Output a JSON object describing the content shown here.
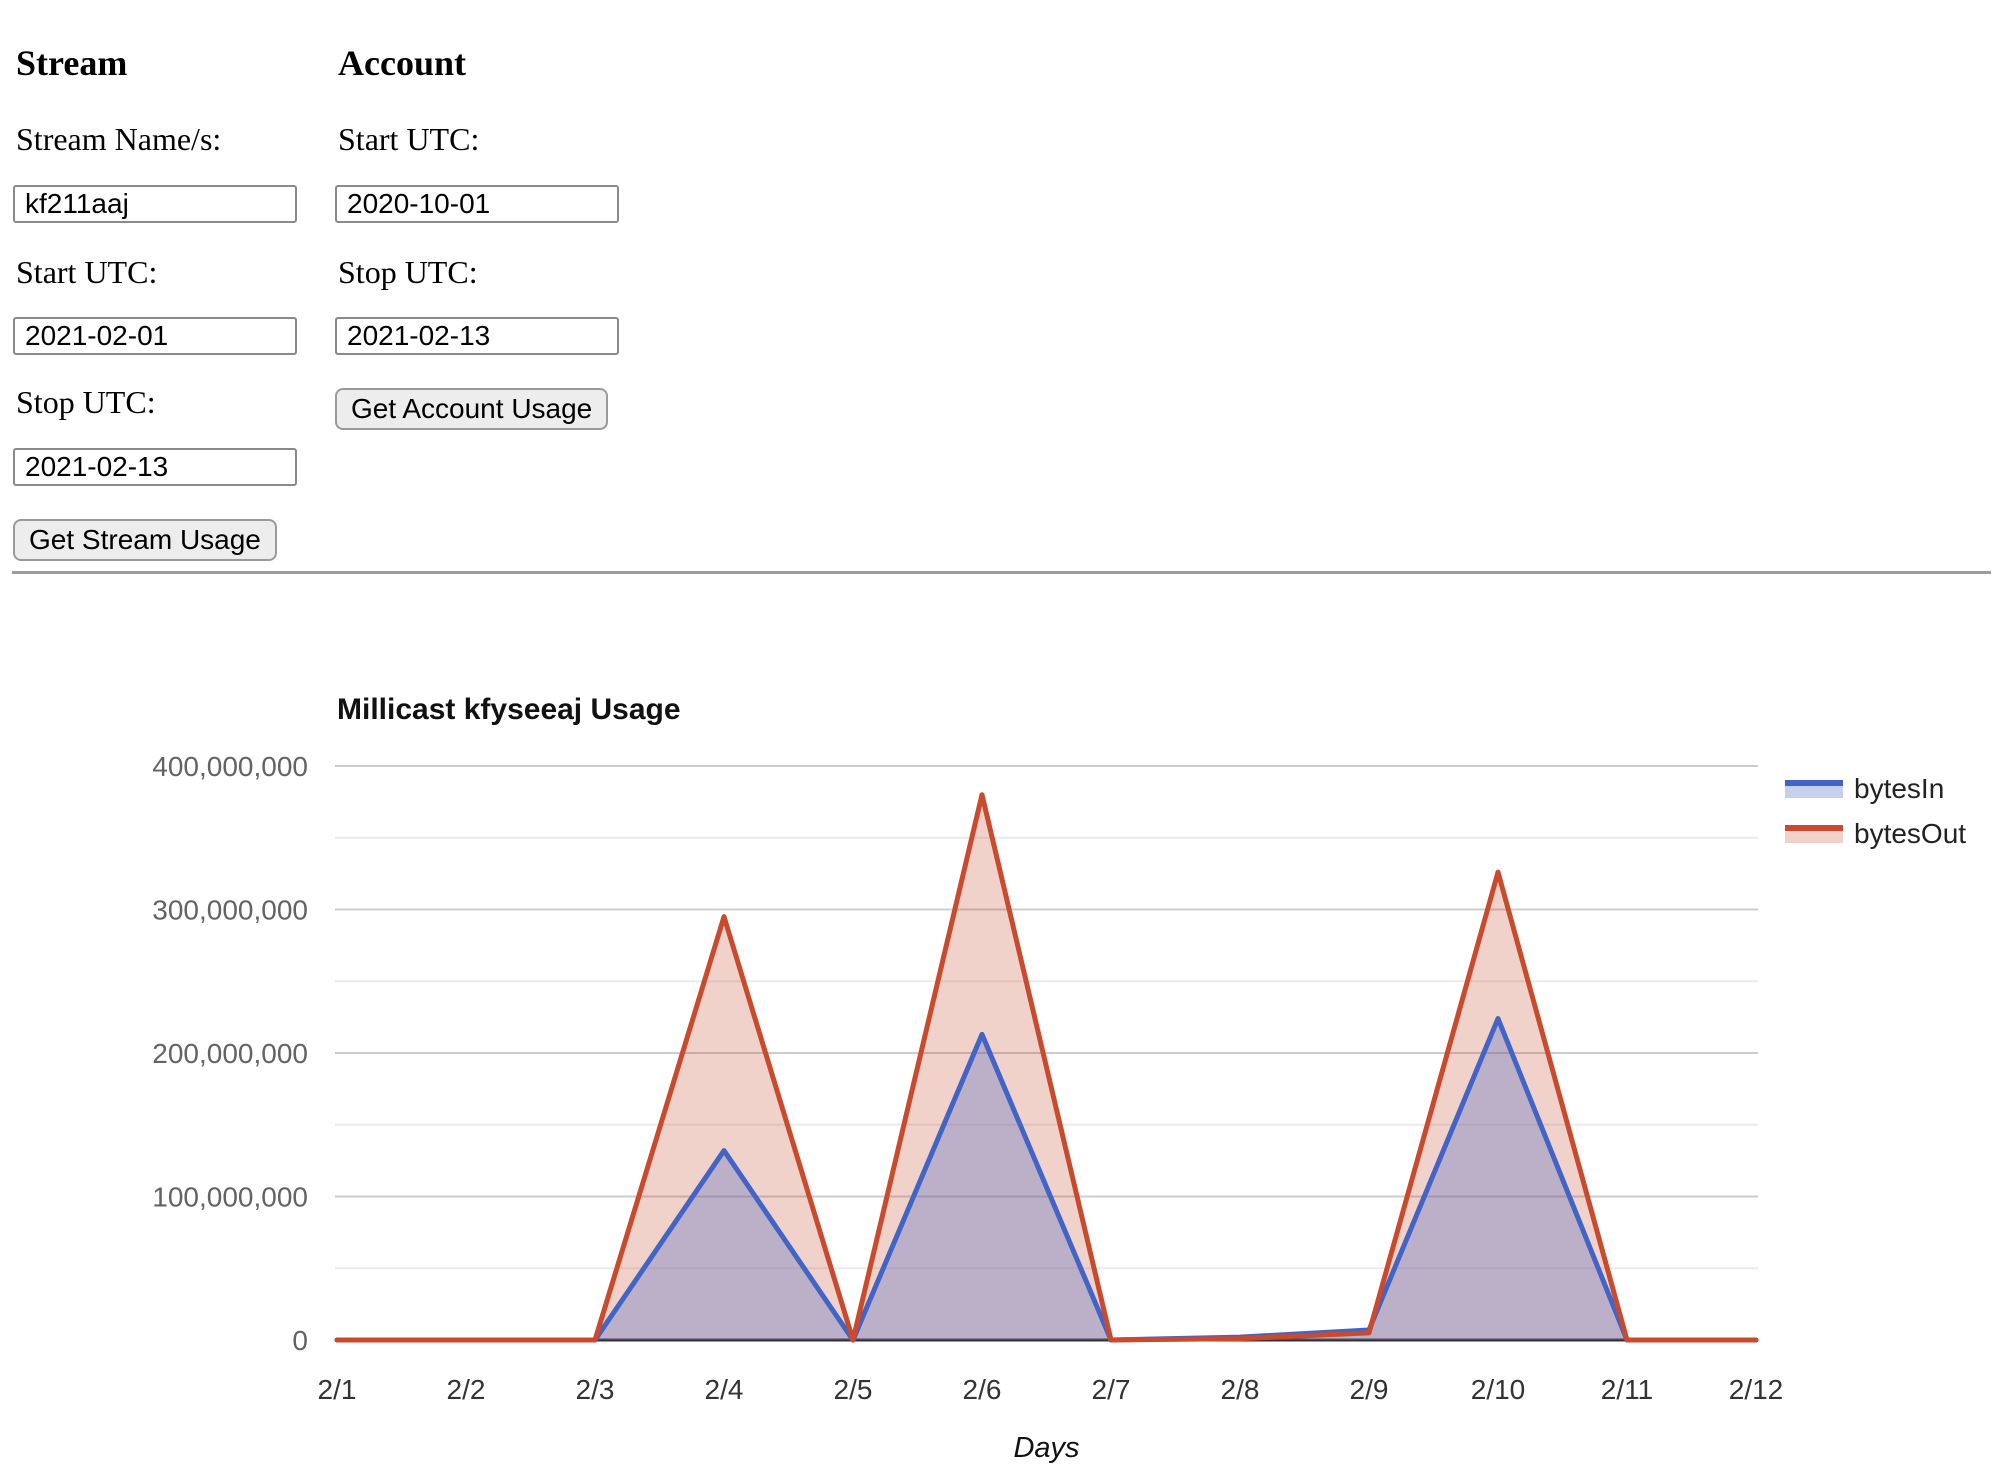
{
  "form": {
    "stream": {
      "heading": "Stream",
      "fields": [
        {
          "label": "Stream Name/s:",
          "value": "kf211aaj"
        },
        {
          "label": "Start UTC:",
          "value": "2021-02-01"
        },
        {
          "label": "Stop UTC:",
          "value": "2021-02-13"
        }
      ],
      "button_label": "Get Stream Usage"
    },
    "account": {
      "heading": "Account",
      "fields": [
        {
          "label": "Start UTC:",
          "value": "2020-10-01"
        },
        {
          "label": "Stop UTC:",
          "value": "2021-02-13"
        }
      ],
      "button_label": "Get Account Usage"
    }
  },
  "chart_data": {
    "type": "area",
    "title": "Millicast kfyseeaj Usage",
    "xlabel": "Days",
    "ylabel": "",
    "categories": [
      "2/1",
      "2/2",
      "2/3",
      "2/4",
      "2/5",
      "2/6",
      "2/7",
      "2/8",
      "2/9",
      "2/10",
      "2/11",
      "2/12"
    ],
    "series": [
      {
        "name": "bytesIn",
        "color": "#4164C6",
        "fill_opacity": 0.3,
        "values": [
          0,
          0,
          0,
          132000000,
          0,
          213000000,
          0,
          2000000,
          7000000,
          224000000,
          0,
          0
        ]
      },
      {
        "name": "bytesOut",
        "color": "#C94A2D",
        "fill_opacity": 0.25,
        "values": [
          0,
          0,
          0,
          295000000,
          0,
          380000000,
          0,
          1000000,
          5000000,
          326000000,
          0,
          0
        ]
      }
    ],
    "ylim": [
      0,
      400000000
    ],
    "ytick_step": 100000000,
    "minor_grid_step": 50000000,
    "grid": true,
    "legend_position": "right",
    "colors": {
      "major_grid": "#cccccc",
      "minor_grid": "#ebebeb",
      "axis_line": "#333333",
      "ytick_text": "#636363",
      "xtick_text": "#333333"
    }
  }
}
